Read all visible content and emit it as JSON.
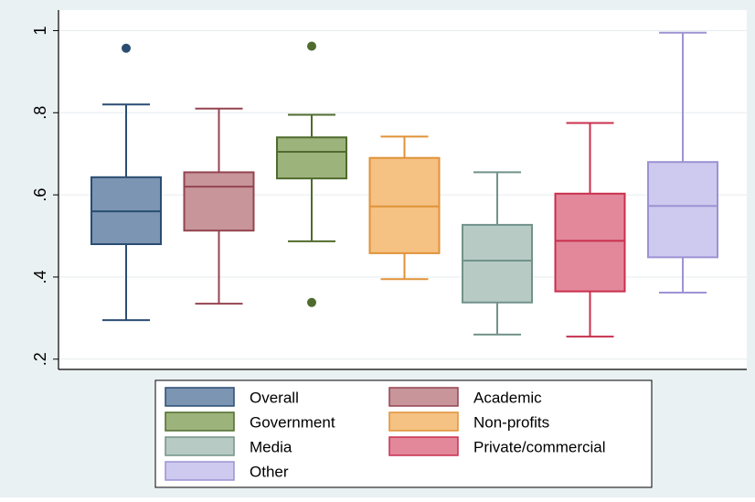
{
  "chart_data": {
    "type": "box",
    "title": "",
    "xlabel": "",
    "ylabel": "",
    "ylim": [
      0.175,
      1.05
    ],
    "yticks": [
      {
        "value": 0.2,
        "label": ".2"
      },
      {
        "value": 0.4,
        "label": ".4"
      },
      {
        "value": 0.6,
        "label": ".6"
      },
      {
        "value": 0.8,
        "label": ".8"
      },
      {
        "value": 1.0,
        "label": "1"
      }
    ],
    "grid": true,
    "legend_position": "bottom",
    "series": [
      {
        "name": "Overall",
        "fill": "#7b95b3",
        "stroke": "#2a4d72",
        "whisker_low": 0.295,
        "q1": 0.48,
        "median": 0.56,
        "q3": 0.643,
        "whisker_high": 0.82,
        "outliers": [
          0.957
        ]
      },
      {
        "name": "Academic",
        "fill": "#c7959a",
        "stroke": "#944451",
        "whisker_low": 0.335,
        "q1": 0.513,
        "median": 0.62,
        "q3": 0.655,
        "whisker_high": 0.81,
        "outliers": []
      },
      {
        "name": "Government",
        "fill": "#9db37c",
        "stroke": "#4f6b2d",
        "whisker_low": 0.487,
        "q1": 0.64,
        "median": 0.705,
        "q3": 0.74,
        "whisker_high": 0.795,
        "outliers": [
          0.962,
          0.338
        ]
      },
      {
        "name": "Non-profits",
        "fill": "#f5c283",
        "stroke": "#e09238",
        "whisker_low": 0.395,
        "q1": 0.458,
        "median": 0.572,
        "q3": 0.69,
        "whisker_high": 0.742,
        "outliers": []
      },
      {
        "name": "Media",
        "fill": "#b7cbc4",
        "stroke": "#72928a",
        "whisker_low": 0.26,
        "q1": 0.338,
        "median": 0.44,
        "q3": 0.527,
        "whisker_high": 0.655,
        "outliers": []
      },
      {
        "name": "Private/commercial",
        "fill": "#e3889b",
        "stroke": "#c8304e",
        "whisker_low": 0.255,
        "q1": 0.365,
        "median": 0.488,
        "q3": 0.603,
        "whisker_high": 0.775,
        "outliers": []
      },
      {
        "name": "Other",
        "fill": "#cec9ee",
        "stroke": "#9c93d4",
        "whisker_low": 0.362,
        "q1": 0.448,
        "median": 0.573,
        "q3": 0.68,
        "whisker_high": 0.995,
        "outliers": []
      }
    ]
  }
}
